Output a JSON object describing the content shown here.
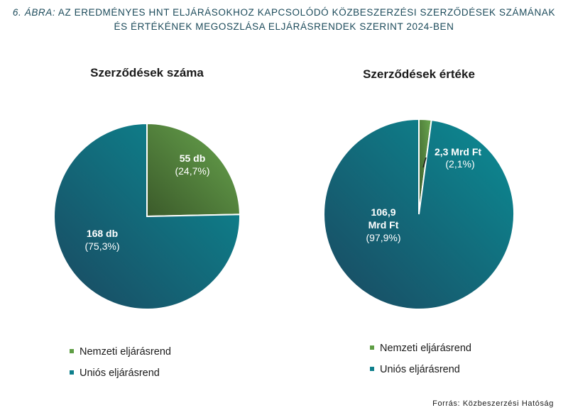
{
  "figure": {
    "title_lead": "6. ÁBRA:",
    "title_line1": "AZ EREDMÉNYES HNT ELJÁRÁSOKHOZ KAPCSOLÓDÓ KÖZBESZERZÉSI SZERZŐDÉSEK SZÁMÁNAK",
    "title_line2": "ÉS ÉRTÉKÉNEK MEGOSZLÁSA ELJÁRÁSRENDEK SZERINT 2024-BEN",
    "source": "Forrás: Közbeszerzési Hatóság"
  },
  "colors": {
    "green_light": "#6aa84f",
    "green_dark": "#3b5a2a",
    "teal_light": "#0b8d95",
    "teal_dark": "#1a4860",
    "legend_green": "#5f9e45",
    "legend_teal": "#0e7f8c"
  },
  "chart_data": [
    {
      "type": "pie",
      "title": "Szerződések száma",
      "series": [
        {
          "name": "Nemzeti eljárásrend",
          "value": 55,
          "value_label": "55 db",
          "pct_label": "(24,7%)"
        },
        {
          "name": "Uniós eljárásrend",
          "value": 168,
          "value_label": "168 db",
          "pct_label": "(75,3%)"
        }
      ],
      "legend": [
        "Nemzeti eljárásrend",
        "Uniós eljárásrend"
      ],
      "legend_position": "bottom"
    },
    {
      "type": "pie",
      "title": "Szerződések értéke",
      "series": [
        {
          "name": "Nemzeti eljárásrend",
          "value": 2.3,
          "value_label": "2,3 Mrd Ft",
          "pct_label": "(2,1%)"
        },
        {
          "name": "Uniós eljárásrend",
          "value": 106.9,
          "value_label_line1": "106,9",
          "value_label_line2": "Mrd Ft",
          "pct_label": "(97,9%)"
        }
      ],
      "legend": [
        "Nemzeti eljárásrend",
        "Uniós eljárásrend"
      ],
      "legend_position": "bottom"
    }
  ]
}
